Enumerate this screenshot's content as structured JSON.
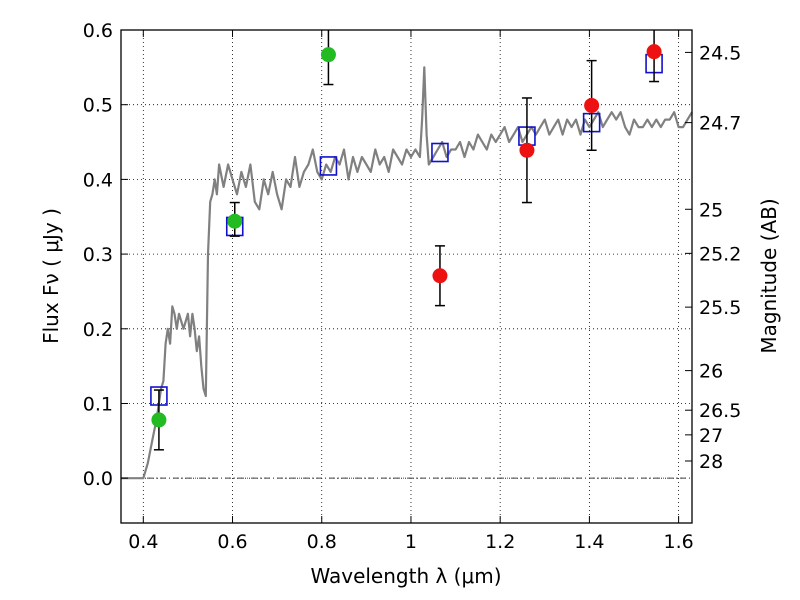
{
  "chart_data": {
    "type": "scatter",
    "xlabel": "Wavelength  λ (μm)",
    "ylabel": "Flux  Fν  ( μJy )",
    "y2label": "Magnitude (AB)",
    "xlim": [
      0.35,
      1.63
    ],
    "ylim": [
      -0.06,
      0.6
    ],
    "x_ticks": [
      0.4,
      0.6,
      0.8,
      1.0,
      1.2,
      1.4,
      1.6
    ],
    "x_tick_labels": [
      "0.4",
      "0.6",
      "0.8",
      "1",
      "1.2",
      "1.4",
      "1.6"
    ],
    "y_ticks": [
      0.0,
      0.1,
      0.2,
      0.3,
      0.4,
      0.5,
      0.6
    ],
    "y_tick_labels": [
      "0.0",
      "0.1",
      "0.2",
      "0.3",
      "0.4",
      "0.5",
      "0.6"
    ],
    "y2_ticks": [
      {
        "label": "24.5",
        "flux": 0.57
      },
      {
        "label": "24.7",
        "flux": 0.476
      },
      {
        "label": "25",
        "flux": 0.36
      },
      {
        "label": "25.2",
        "flux": 0.301
      },
      {
        "label": "25.5",
        "flux": 0.229
      },
      {
        "label": "26",
        "flux": 0.144
      },
      {
        "label": "26.5",
        "flux": 0.091
      },
      {
        "label": "27",
        "flux": 0.058
      },
      {
        "label": "28",
        "flux": 0.023
      }
    ],
    "grid": true,
    "colors": {
      "model": "#808080",
      "green": "#22bb22",
      "red": "#ee1111",
      "model_box": "#1111cc",
      "errorbar": "#000000",
      "zero_line": "#404040"
    },
    "series": [
      {
        "kind": "line",
        "color": "#808080",
        "x": [
          0.35,
          0.4,
          0.41,
          0.42,
          0.43,
          0.44,
          0.445,
          0.45,
          0.455,
          0.46,
          0.465,
          0.47,
          0.475,
          0.48,
          0.49,
          0.5,
          0.505,
          0.51,
          0.515,
          0.52,
          0.525,
          0.53,
          0.535,
          0.54,
          0.545,
          0.55,
          0.555,
          0.56,
          0.565,
          0.57,
          0.58,
          0.59,
          0.6,
          0.61,
          0.62,
          0.63,
          0.64,
          0.65,
          0.66,
          0.67,
          0.68,
          0.69,
          0.7,
          0.71,
          0.72,
          0.73,
          0.74,
          0.75,
          0.76,
          0.77,
          0.78,
          0.79,
          0.8,
          0.81,
          0.82,
          0.83,
          0.84,
          0.85,
          0.86,
          0.87,
          0.88,
          0.89,
          0.9,
          0.91,
          0.92,
          0.93,
          0.94,
          0.95,
          0.96,
          0.97,
          0.98,
          0.99,
          1.0,
          1.01,
          1.02,
          1.025,
          1.03,
          1.035,
          1.04,
          1.05,
          1.06,
          1.07,
          1.08,
          1.09,
          1.1,
          1.11,
          1.12,
          1.13,
          1.14,
          1.15,
          1.16,
          1.17,
          1.18,
          1.19,
          1.2,
          1.21,
          1.22,
          1.23,
          1.24,
          1.25,
          1.26,
          1.27,
          1.28,
          1.29,
          1.3,
          1.31,
          1.32,
          1.33,
          1.34,
          1.35,
          1.36,
          1.37,
          1.38,
          1.39,
          1.4,
          1.41,
          1.42,
          1.43,
          1.44,
          1.45,
          1.46,
          1.47,
          1.48,
          1.49,
          1.5,
          1.51,
          1.52,
          1.53,
          1.54,
          1.55,
          1.56,
          1.57,
          1.58,
          1.59,
          1.6,
          1.61,
          1.62,
          1.63
        ],
        "y": [
          0.0,
          0.0,
          0.02,
          0.05,
          0.08,
          0.12,
          0.13,
          0.18,
          0.2,
          0.18,
          0.23,
          0.22,
          0.2,
          0.22,
          0.2,
          0.22,
          0.19,
          0.22,
          0.2,
          0.17,
          0.19,
          0.15,
          0.12,
          0.11,
          0.3,
          0.37,
          0.38,
          0.4,
          0.38,
          0.42,
          0.39,
          0.42,
          0.4,
          0.38,
          0.41,
          0.39,
          0.42,
          0.37,
          0.36,
          0.4,
          0.38,
          0.41,
          0.38,
          0.36,
          0.4,
          0.39,
          0.43,
          0.39,
          0.41,
          0.42,
          0.44,
          0.41,
          0.4,
          0.42,
          0.41,
          0.43,
          0.42,
          0.44,
          0.4,
          0.43,
          0.41,
          0.43,
          0.42,
          0.41,
          0.44,
          0.42,
          0.43,
          0.41,
          0.44,
          0.43,
          0.42,
          0.44,
          0.43,
          0.44,
          0.43,
          0.48,
          0.55,
          0.46,
          0.42,
          0.43,
          0.44,
          0.45,
          0.43,
          0.44,
          0.44,
          0.45,
          0.43,
          0.45,
          0.44,
          0.46,
          0.45,
          0.44,
          0.46,
          0.45,
          0.46,
          0.47,
          0.45,
          0.46,
          0.47,
          0.45,
          0.46,
          0.47,
          0.46,
          0.47,
          0.48,
          0.46,
          0.47,
          0.48,
          0.46,
          0.48,
          0.47,
          0.48,
          0.46,
          0.48,
          0.47,
          0.48,
          0.49,
          0.47,
          0.48,
          0.49,
          0.48,
          0.49,
          0.47,
          0.46,
          0.48,
          0.47,
          0.47,
          0.48,
          0.47,
          0.48,
          0.47,
          0.48,
          0.48,
          0.49,
          0.47,
          0.47,
          0.48,
          0.49
        ]
      },
      {
        "kind": "model_box",
        "color": "#1111cc",
        "x": [
          0.435,
          0.605,
          0.815,
          1.065,
          1.26,
          1.405,
          1.545
        ],
        "y": [
          0.11,
          0.337,
          0.418,
          0.436,
          0.458,
          0.476,
          0.555
        ]
      },
      {
        "kind": "points",
        "color": "#22bb22",
        "x": [
          0.435,
          0.605,
          0.815
        ],
        "y": [
          0.078,
          0.344,
          0.567
        ],
        "err_low": [
          0.04,
          0.02,
          0.04
        ],
        "err_high": [
          0.04,
          0.025,
          0.04
        ]
      },
      {
        "kind": "points",
        "color": "#ee1111",
        "x": [
          1.065,
          1.26,
          1.405,
          1.545
        ],
        "y": [
          0.271,
          0.439,
          0.499,
          0.571
        ],
        "err_low": [
          0.04,
          0.07,
          0.06,
          0.04
        ],
        "err_high": [
          0.04,
          0.07,
          0.06,
          0.04
        ]
      }
    ]
  }
}
